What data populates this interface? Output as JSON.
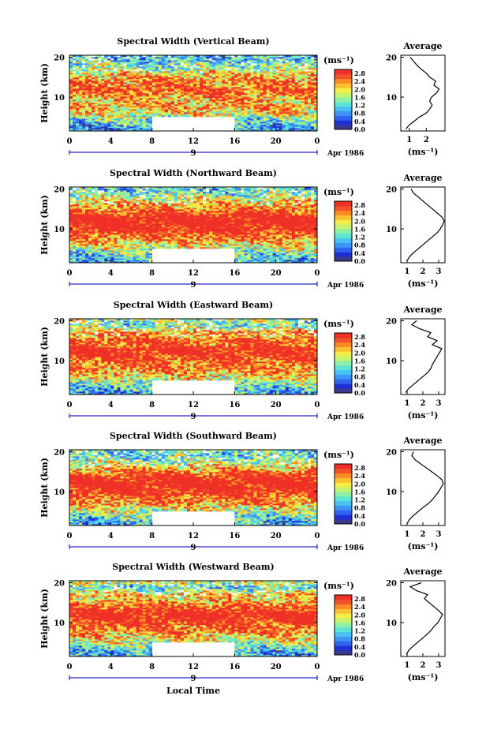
{
  "colors": {
    "scale": [
      "#3a3a8c",
      "#1f2fd6",
      "#2f63f0",
      "#3d94f5",
      "#49c0f2",
      "#5ee3d7",
      "#8ef0a6",
      "#c4f36e",
      "#f2ee47",
      "#f9c030",
      "#f98a26",
      "#f2512a",
      "#ef3026"
    ],
    "missing": "#ffffff",
    "axis": "#000000",
    "time_axis": "#2828c8"
  },
  "chart_data": [
    {
      "type": "heatmap",
      "title": "Spectral Width (Vertical Beam)",
      "ylabel": "Height (km)",
      "x_ticks": [
        "0",
        "4",
        "8",
        "12",
        "16",
        "20",
        "0"
      ],
      "y_ticks": [
        "20",
        "10"
      ],
      "xlim": [
        0,
        24
      ],
      "ylim": [
        1.5,
        20.5
      ],
      "date_label": "Apr 1986",
      "day_label": "9",
      "colorbar": {
        "unit": "(ms⁻¹)",
        "ticks": [
          "2.8",
          "2.4",
          "2.0",
          "1.6",
          "1.2",
          "0.8",
          "0.4",
          "0.0"
        ],
        "range": [
          0,
          3.0
        ]
      },
      "gap": {
        "x": [
          8,
          16
        ],
        "y": [
          1.5,
          5.2
        ]
      },
      "profile": {
        "title": "Average",
        "xlabel": "(ms⁻¹)",
        "x_ticks": [
          "1",
          "2"
        ],
        "y_ticks": [
          "20",
          "10"
        ],
        "xlim": [
          0.5,
          3.1
        ],
        "height": [
          2,
          3,
          4,
          5,
          6,
          7,
          8,
          9,
          10,
          11,
          12,
          13,
          14,
          15,
          16,
          17,
          18,
          19,
          20
        ],
        "width": [
          0.8,
          1.0,
          1.3,
          1.6,
          2.0,
          2.2,
          2.35,
          2.2,
          2.3,
          2.6,
          2.75,
          2.45,
          2.55,
          2.2,
          2.0,
          1.7,
          1.45,
          1.25,
          1.05
        ]
      }
    },
    {
      "type": "heatmap",
      "title": "Spectral Width (Northward Beam)",
      "ylabel": "Height (km)",
      "x_ticks": [
        "0",
        "4",
        "8",
        "12",
        "16",
        "20",
        "0"
      ],
      "y_ticks": [
        "20",
        "10"
      ],
      "xlim": [
        0,
        24
      ],
      "ylim": [
        1.5,
        20.5
      ],
      "date_label": "Apr 1986",
      "day_label": "9",
      "colorbar": {
        "unit": "(ms⁻¹)",
        "ticks": [
          "2.8",
          "2.4",
          "2.0",
          "1.6",
          "1.2",
          "0.8",
          "0.4",
          "0.0"
        ],
        "range": [
          0,
          3.0
        ]
      },
      "gap": {
        "x": [
          8,
          16
        ],
        "y": [
          1.5,
          5.2
        ]
      },
      "profile": {
        "title": "Average",
        "xlabel": "(ms⁻¹)",
        "x_ticks": [
          "1",
          "2",
          "3"
        ],
        "y_ticks": [
          "20",
          "10"
        ],
        "xlim": [
          0.6,
          3.4
        ],
        "height": [
          2,
          3,
          4,
          5,
          6,
          7,
          8,
          9,
          10,
          11,
          12,
          13,
          14,
          15,
          16,
          17,
          18,
          19,
          20
        ],
        "width": [
          1.0,
          1.15,
          1.4,
          1.7,
          2.0,
          2.3,
          2.6,
          2.9,
          3.1,
          3.25,
          3.35,
          3.2,
          2.9,
          2.6,
          2.3,
          2.0,
          1.7,
          1.4,
          1.25
        ]
      }
    },
    {
      "type": "heatmap",
      "title": "Spectral Width (Eastward Beam)",
      "ylabel": "Height (km)",
      "x_ticks": [
        "0",
        "4",
        "8",
        "12",
        "16",
        "20",
        "0"
      ],
      "y_ticks": [
        "20",
        "10"
      ],
      "xlim": [
        0,
        24
      ],
      "ylim": [
        1.5,
        20.5
      ],
      "date_label": "Apr 1986",
      "day_label": "9",
      "colorbar": {
        "unit": "(ms⁻¹)",
        "ticks": [
          "2.8",
          "2.4",
          "2.0",
          "1.6",
          "1.2",
          "0.8",
          "0.4",
          "0.0"
        ],
        "range": [
          0,
          3.0
        ]
      },
      "gap": {
        "x": [
          8,
          16
        ],
        "y": [
          1.5,
          5.2
        ]
      },
      "profile": {
        "title": "Average",
        "xlabel": "(ms⁻¹)",
        "x_ticks": [
          "1",
          "2",
          "3"
        ],
        "y_ticks": [
          "20",
          "10"
        ],
        "xlim": [
          0.6,
          3.4
        ],
        "height": [
          2,
          3,
          4,
          5,
          6,
          7,
          8,
          9,
          10,
          11,
          12,
          13,
          14,
          15,
          16,
          17,
          18,
          19,
          20
        ],
        "width": [
          0.9,
          1.1,
          1.4,
          1.7,
          2.0,
          2.3,
          2.5,
          2.6,
          2.75,
          2.9,
          3.05,
          3.2,
          2.6,
          2.9,
          2.3,
          2.5,
          1.8,
          1.3,
          1.6
        ]
      }
    },
    {
      "type": "heatmap",
      "title": "Spectral Width (Southward Beam)",
      "ylabel": "Height (km)",
      "x_ticks": [
        "0",
        "4",
        "8",
        "12",
        "16",
        "20",
        "0"
      ],
      "y_ticks": [
        "20",
        "10"
      ],
      "xlim": [
        0,
        24
      ],
      "ylim": [
        1.5,
        20.5
      ],
      "date_label": "Apr 1986",
      "day_label": "9",
      "colorbar": {
        "unit": "(ms⁻¹)",
        "ticks": [
          "2.8",
          "2.4",
          "2.0",
          "1.6",
          "1.2",
          "0.8",
          "0.4",
          "0.0"
        ],
        "range": [
          0,
          3.0
        ]
      },
      "gap": {
        "x": [
          8,
          16
        ],
        "y": [
          1.5,
          5.2
        ]
      },
      "profile": {
        "title": "Average",
        "xlabel": "(ms⁻¹)",
        "x_ticks": [
          "1",
          "2",
          "3"
        ],
        "y_ticks": [
          "20",
          "10"
        ],
        "xlim": [
          0.6,
          3.4
        ],
        "height": [
          2,
          3,
          4,
          5,
          6,
          7,
          8,
          9,
          10,
          11,
          12,
          13,
          14,
          15,
          16,
          17,
          18,
          19,
          20
        ],
        "width": [
          1.0,
          1.15,
          1.4,
          1.7,
          2.0,
          2.35,
          2.6,
          2.8,
          3.0,
          3.15,
          3.3,
          3.2,
          2.9,
          2.55,
          2.2,
          1.85,
          1.5,
          1.3,
          1.4
        ]
      }
    },
    {
      "type": "heatmap",
      "title": "Spectral Width (Westward Beam)",
      "ylabel": "Height (km)",
      "x_ticks": [
        "0",
        "4",
        "8",
        "12",
        "16",
        "20",
        "0"
      ],
      "y_ticks": [
        "20",
        "10"
      ],
      "xlim": [
        0,
        24
      ],
      "ylim": [
        1.5,
        20.5
      ],
      "date_label": "Apr 1986",
      "day_label": "9",
      "xlabel": "Local Time",
      "colorbar": {
        "unit": "(ms⁻¹)",
        "ticks": [
          "2.8",
          "2.4",
          "2.0",
          "1.6",
          "1.2",
          "0.8",
          "0.4",
          "0.0"
        ],
        "range": [
          0,
          3.0
        ]
      },
      "gap": {
        "x": [
          8,
          16
        ],
        "y": [
          1.5,
          5.2
        ]
      },
      "profile": {
        "title": "Average",
        "xlabel": "(ms⁻¹)",
        "x_ticks": [
          "1",
          "2",
          "3"
        ],
        "y_ticks": [
          "20",
          "10"
        ],
        "xlim": [
          0.6,
          3.4
        ],
        "height": [
          2,
          3,
          4,
          5,
          6,
          7,
          8,
          9,
          10,
          11,
          12,
          13,
          14,
          15,
          16,
          17,
          18,
          19,
          20
        ],
        "width": [
          0.95,
          1.1,
          1.35,
          1.65,
          1.95,
          2.25,
          2.5,
          2.7,
          2.95,
          3.1,
          3.25,
          3.0,
          2.7,
          2.4,
          2.1,
          2.3,
          1.6,
          1.2,
          1.9
        ]
      }
    }
  ]
}
